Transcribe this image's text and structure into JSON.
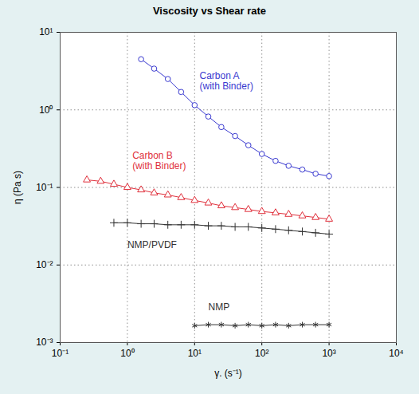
{
  "chart_data": {
    "type": "line",
    "title": "Viscosity vs Shear rate",
    "x_label": "γ. (s⁻¹)",
    "y_label": "η (Pa s)",
    "log": true,
    "grid": true,
    "xlim": [
      0.1,
      10000
    ],
    "ylim": [
      0.001,
      10
    ],
    "xticks": [
      {
        "value": 0.1,
        "label": "10⁻¹"
      },
      {
        "value": 1,
        "label": "10⁰"
      },
      {
        "value": 10,
        "label": "10¹"
      },
      {
        "value": 100,
        "label": "10²"
      },
      {
        "value": 1000,
        "label": "10³"
      },
      {
        "value": 10000,
        "label": "10⁴"
      }
    ],
    "yticks": [
      {
        "value": 0.001,
        "label": "10⁻³"
      },
      {
        "value": 0.01,
        "label": "10⁻²"
      },
      {
        "value": 0.1,
        "label": "10⁻¹"
      },
      {
        "value": 1,
        "label": "10⁰"
      },
      {
        "value": 10,
        "label": "10¹"
      }
    ],
    "series": [
      {
        "name": "Carbon A\n(with Binder)",
        "color": "#3a3ad0",
        "marker": "circle",
        "line_style": "solid",
        "x": [
          1.6,
          2.5,
          4,
          6.3,
          10,
          16,
          25,
          40,
          63,
          100,
          160,
          250,
          400,
          630,
          1000
        ],
        "values": [
          4.5,
          3.4,
          2.5,
          1.7,
          1.15,
          0.82,
          0.6,
          0.46,
          0.35,
          0.27,
          0.22,
          0.19,
          0.17,
          0.15,
          0.14
        ]
      },
      {
        "name": "Carbon B\n(with Binder)",
        "color": "#e0303c",
        "marker": "triangle",
        "line_style": "solid",
        "x": [
          0.25,
          0.4,
          0.63,
          1,
          1.6,
          2.5,
          4,
          6.3,
          10,
          16,
          25,
          40,
          63,
          100,
          160,
          250,
          400,
          630,
          1000
        ],
        "values": [
          0.125,
          0.12,
          0.11,
          0.1,
          0.093,
          0.085,
          0.08,
          0.074,
          0.068,
          0.063,
          0.058,
          0.055,
          0.052,
          0.049,
          0.047,
          0.045,
          0.043,
          0.041,
          0.039
        ]
      },
      {
        "name": "NMP/PVDF",
        "color": "#333333",
        "marker": "plus",
        "line_style": "solid",
        "x": [
          0.63,
          1,
          1.6,
          2.5,
          4,
          6.3,
          10,
          16,
          25,
          40,
          63,
          100,
          160,
          250,
          400,
          630,
          1000
        ],
        "values": [
          0.035,
          0.035,
          0.034,
          0.034,
          0.033,
          0.033,
          0.033,
          0.032,
          0.032,
          0.031,
          0.031,
          0.03,
          0.029,
          0.028,
          0.027,
          0.026,
          0.025
        ]
      },
      {
        "name": "NMP",
        "color": "#333333",
        "marker": "asterisk",
        "line_style": "solid",
        "x": [
          10,
          16,
          25,
          40,
          63,
          100,
          160,
          250,
          400,
          630,
          1000
        ],
        "values": [
          0.00165,
          0.0017,
          0.0017,
          0.00165,
          0.0017,
          0.00165,
          0.0017,
          0.00165,
          0.0017,
          0.0017,
          0.0017
        ]
      }
    ]
  }
}
